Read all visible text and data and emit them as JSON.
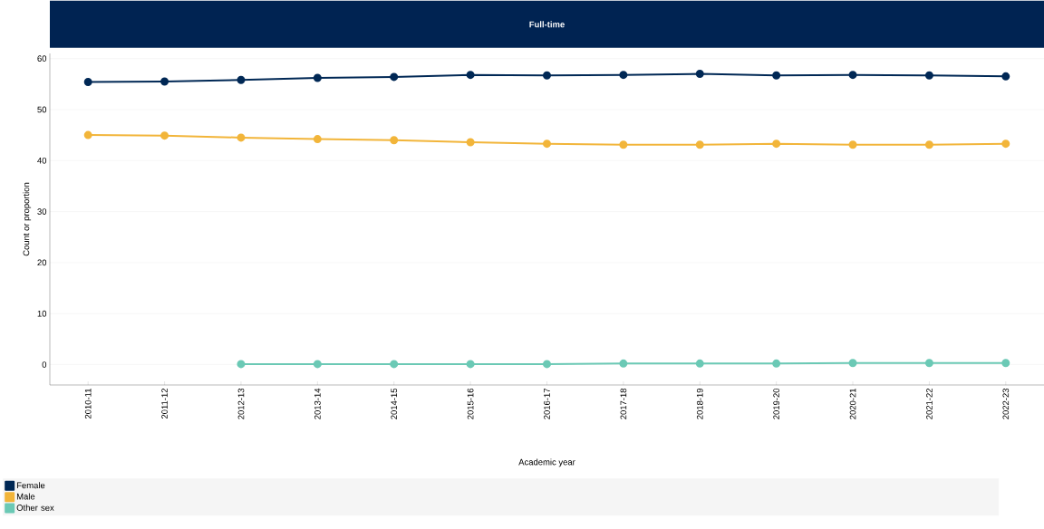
{
  "chart_data": {
    "type": "line",
    "title": "Full-time",
    "xlabel": "Academic year",
    "ylabel": "Count or proportion",
    "categories": [
      "2010-11",
      "2011-12",
      "2012-13",
      "2013-14",
      "2014-15",
      "2015-16",
      "2016-17",
      "2017-18",
      "2018-19",
      "2019-20",
      "2020-21",
      "2021-22",
      "2022-23"
    ],
    "series": [
      {
        "name": "Female",
        "color": "#002855",
        "values": [
          55.4,
          55.5,
          55.8,
          56.2,
          56.4,
          56.8,
          56.7,
          56.8,
          57.0,
          56.7,
          56.8,
          56.7,
          56.5
        ]
      },
      {
        "name": "Male",
        "color": "#f2b53a",
        "values": [
          45.0,
          44.9,
          44.5,
          44.2,
          44.0,
          43.6,
          43.3,
          43.1,
          43.1,
          43.3,
          43.1,
          43.1,
          43.3
        ]
      },
      {
        "name": "Other sex",
        "color": "#6bc9b5",
        "values": [
          null,
          null,
          0.1,
          0.1,
          0.1,
          0.1,
          0.1,
          0.2,
          0.2,
          0.2,
          0.3,
          0.3,
          0.3
        ]
      }
    ],
    "ylim": [
      -4,
      61
    ],
    "yticks": [
      0,
      10,
      20,
      30,
      40,
      50,
      60
    ],
    "grid": "y",
    "legend": "bottom",
    "marker": "circle",
    "line_style": "solid"
  }
}
